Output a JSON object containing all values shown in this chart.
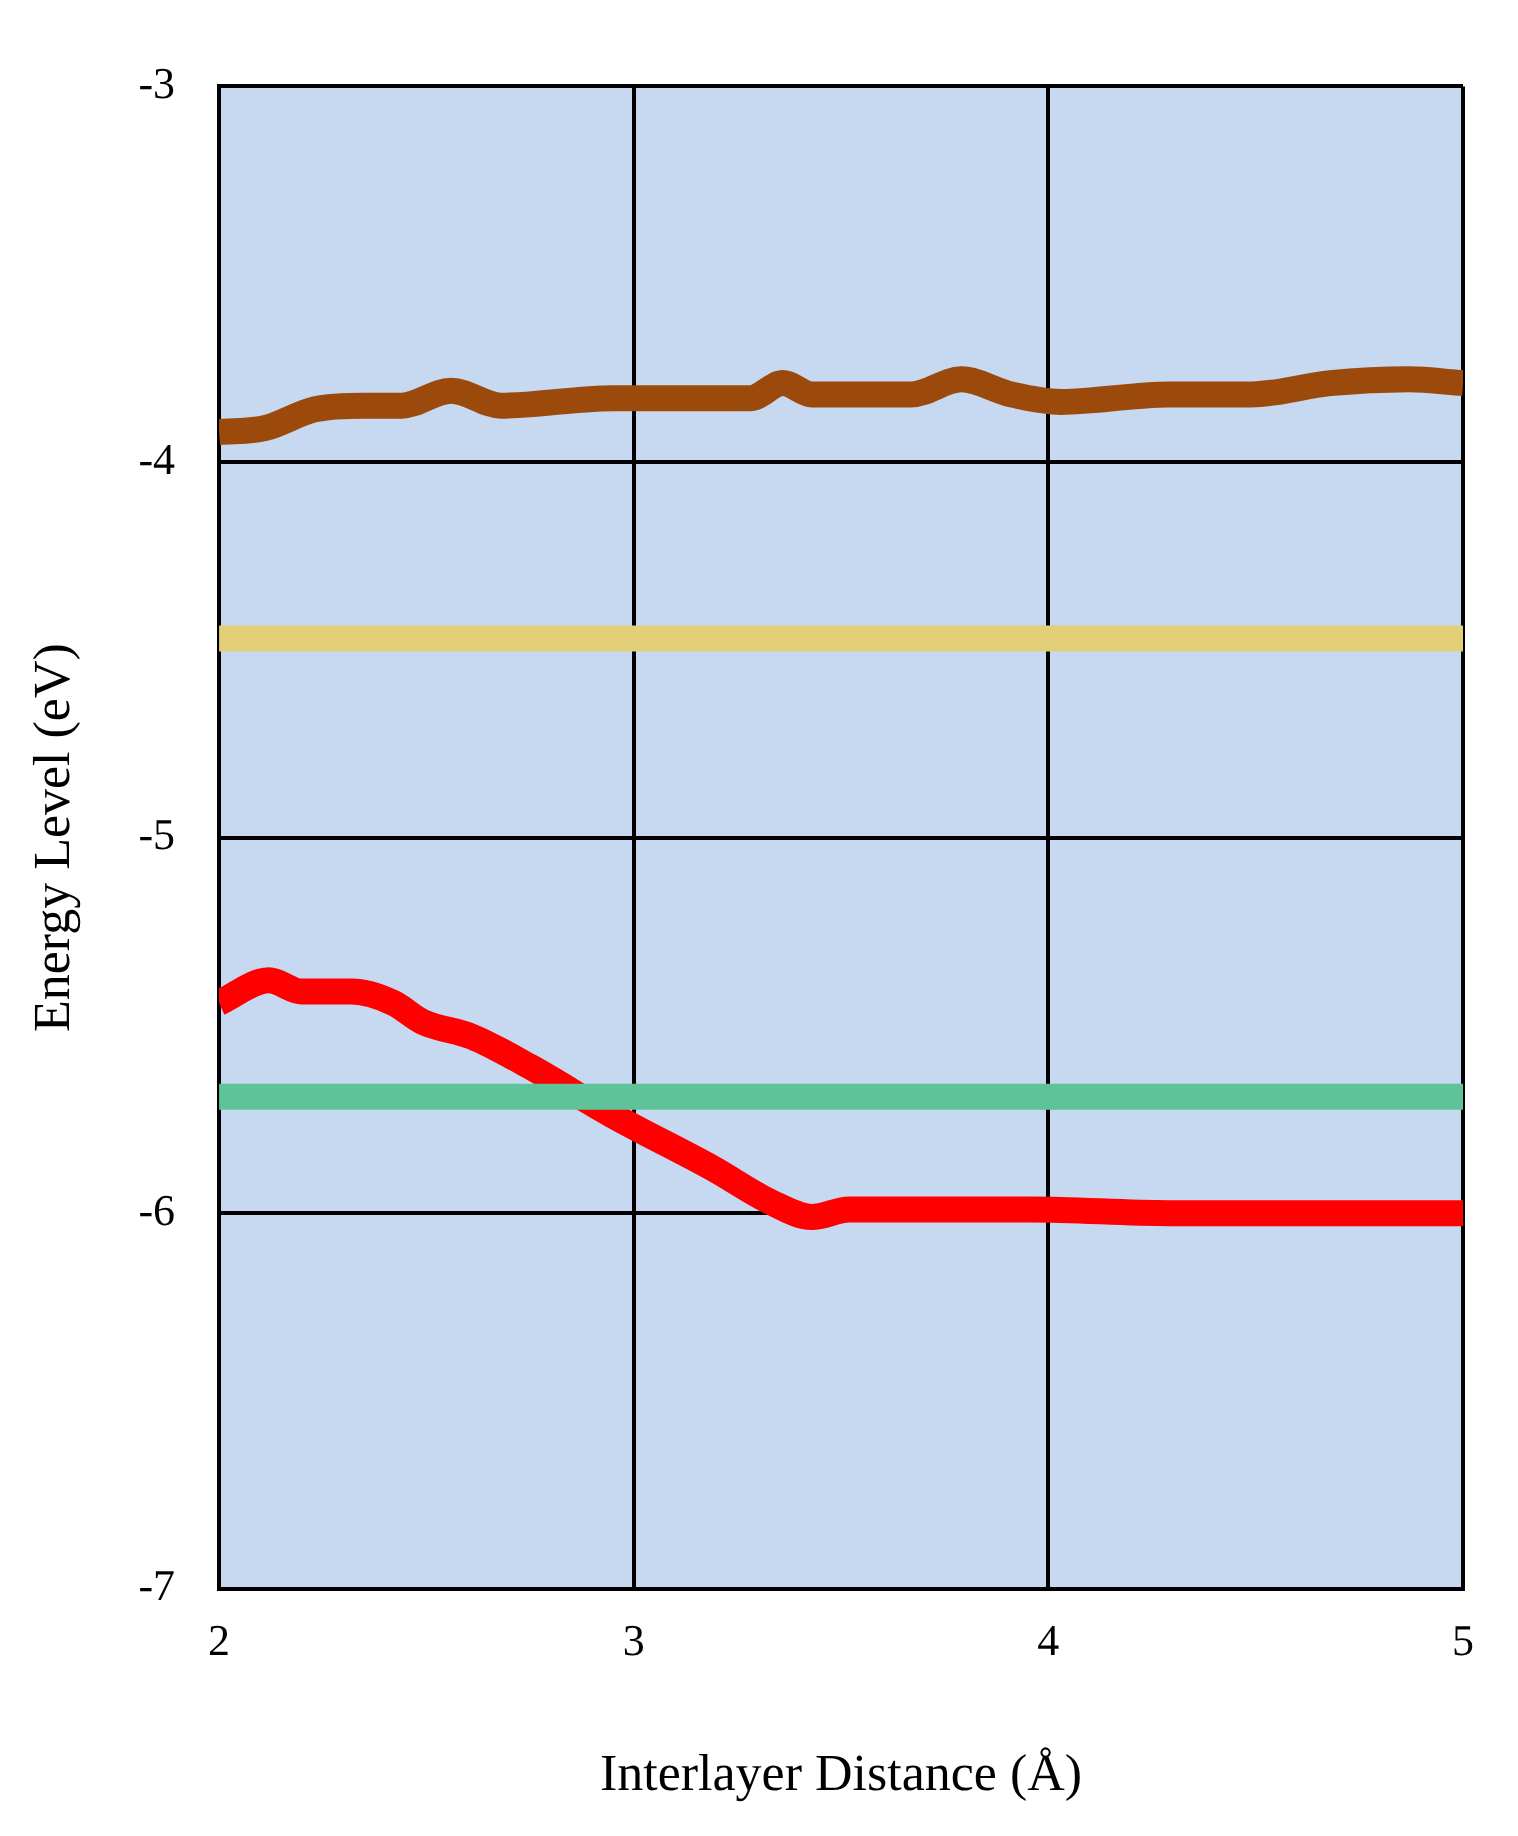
{
  "chart_data": {
    "type": "line",
    "xlabel": "Interlayer Distance (Å)",
    "ylabel": "Energy Level (eV)",
    "xlim": [
      2,
      5
    ],
    "xticks": [
      2,
      3,
      4,
      5
    ],
    "ylim": [
      -7,
      -3
    ],
    "yticks": [
      -7,
      -6,
      -5,
      -4,
      -3
    ],
    "grid": true,
    "legend": false,
    "marker": "none",
    "line_style": "solid",
    "series": [
      {
        "color": "#e3cf78",
        "x": [
          2,
          5
        ],
        "values": [
          -4.47,
          -4.47
        ]
      },
      {
        "color": "#5fc39a",
        "x": [
          2,
          5
        ],
        "values": [
          -5.69,
          -5.69
        ]
      },
      {
        "color": "#9c4a0c",
        "x": [
          2,
          2.11,
          2.23,
          2.35,
          2.44,
          2.56,
          2.68,
          2.95,
          3.28,
          3.36,
          3.43,
          3.55,
          3.67,
          3.79,
          3.91,
          4.03,
          4.29,
          4.49,
          4.68,
          4.87,
          5
        ],
        "values": [
          -3.92,
          -3.91,
          -3.86,
          -3.85,
          -3.85,
          -3.81,
          -3.85,
          -3.83,
          -3.83,
          -3.79,
          -3.82,
          -3.82,
          -3.82,
          -3.78,
          -3.82,
          -3.84,
          -3.82,
          -3.82,
          -3.79,
          -3.78,
          -3.79
        ]
      },
      {
        "color": "#ff0000",
        "x": [
          2,
          2.12,
          2.2,
          2.32,
          2.42,
          2.49,
          2.61,
          2.75,
          2.95,
          3.19,
          3.33,
          3.43,
          3.52,
          3.96,
          4.29,
          5
        ],
        "values": [
          -5.44,
          -5.38,
          -5.41,
          -5.41,
          -5.44,
          -5.49,
          -5.53,
          -5.61,
          -5.74,
          -5.88,
          -5.97,
          -6.01,
          -5.99,
          -5.99,
          -6,
          -6
        ]
      }
    ]
  }
}
